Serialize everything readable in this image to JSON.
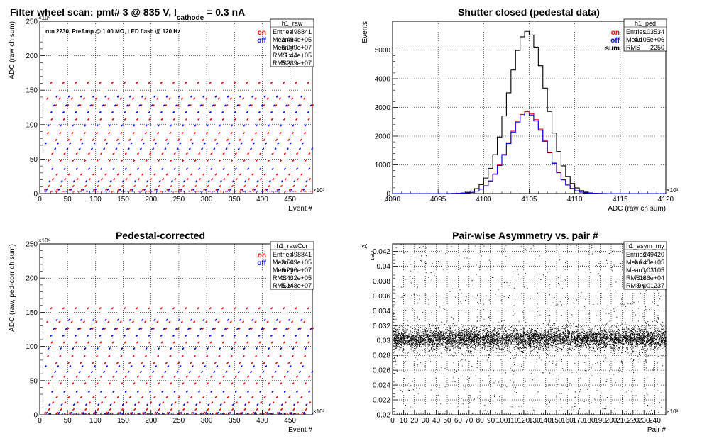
{
  "chart_data": [
    {
      "id": "raw",
      "type": "scatter",
      "title": "Filter wheel scan: pmt#   3 @   835 V, I",
      "title_sub": "cathode",
      "title_tail": "= 0.3 nA",
      "note": "run 2230, PreAmp @ 1.00 MΩ, LED flash @  120 Hz",
      "xlabel": "Event #",
      "ylabel": "ADC (raw ch sum)",
      "x_exponent": "×10³",
      "y_exponent": "×10⁶",
      "xlim": [
        0,
        490
      ],
      "ylim": [
        0,
        250
      ],
      "xticks": [
        0,
        50,
        100,
        150,
        200,
        250,
        300,
        350,
        400,
        450
      ],
      "yticks": [
        0,
        50,
        100,
        150,
        200,
        250
      ],
      "legend": [
        {
          "name": "on",
          "color": "#ff0000"
        },
        {
          "name": "off",
          "color": "#0000ff"
        }
      ],
      "levels_on": [
        5,
        10,
        20,
        27,
        47,
        57,
        77,
        87,
        107,
        127,
        137,
        160
      ],
      "levels_off": [
        5,
        17,
        35,
        64,
        72,
        98,
        117,
        127,
        140
      ],
      "period": 22,
      "stats": {
        "name": "h1_raw",
        "rows": [
          [
            "Entries",
            "498841"
          ],
          [
            "Mean x",
            "2.494e+05"
          ],
          [
            "Mean y",
            "6.049e+07"
          ],
          [
            "RMS x",
            "1.44e+05"
          ],
          [
            "RMS y",
            "5.239e+07"
          ]
        ]
      }
    },
    {
      "id": "ped",
      "type": "line",
      "title": "Shutter closed (pedestal data)",
      "xlabel": "ADC (raw ch sum)",
      "ylabel": "Events",
      "x_exponent": "×10³",
      "xlim": [
        4090,
        4120
      ],
      "ylim": [
        0,
        6000
      ],
      "xticks": [
        4090,
        4095,
        4100,
        4105,
        4110,
        4115,
        4120
      ],
      "yticks": [
        0,
        1000,
        2000,
        3000,
        4000,
        5000
      ],
      "legend": [
        {
          "name": "on",
          "color": "#ff0000"
        },
        {
          "name": "off",
          "color": "#0000ff"
        },
        {
          "name": "sum",
          "color": "#000000"
        }
      ],
      "series": [
        {
          "name": "sum",
          "color": "#000000",
          "mean": 4104.8,
          "sigma": 2.1,
          "peak": 5650
        },
        {
          "name": "on",
          "color": "#ff0000",
          "mean": 4104.8,
          "sigma": 2.1,
          "peak": 2850
        },
        {
          "name": "off",
          "color": "#0000ff",
          "mean": 4104.8,
          "sigma": 2.1,
          "peak": 2800
        }
      ],
      "stats": {
        "name": "h1_ped",
        "rows": [
          [
            "Entries",
            "103534"
          ],
          [
            "Mean",
            "4.105e+06"
          ],
          [
            "RMS",
            "2250"
          ]
        ]
      }
    },
    {
      "id": "rawcor",
      "type": "scatter",
      "title": "Pedestal-corrected",
      "xlabel": "Event #",
      "ylabel": "ADC (raw, ped-corr ch sum)",
      "x_exponent": "×10³",
      "y_exponent": "×10⁶",
      "xlim": [
        0,
        490
      ],
      "ylim": [
        0,
        250
      ],
      "xticks": [
        0,
        50,
        100,
        150,
        200,
        250,
        300,
        350,
        400,
        450
      ],
      "yticks": [
        0,
        50,
        100,
        150,
        200,
        250
      ],
      "legend": [
        {
          "name": "on",
          "color": "#ff0000"
        },
        {
          "name": "off",
          "color": "#0000ff"
        }
      ],
      "levels_on": [
        2,
        7,
        17,
        25,
        45,
        55,
        75,
        85,
        105,
        125,
        135,
        155
      ],
      "levels_off": [
        2,
        14,
        33,
        62,
        70,
        96,
        115,
        125,
        138
      ],
      "period": 22,
      "stats": {
        "name": "h1_rawCor",
        "rows": [
          [
            "Entries",
            "498841"
          ],
          [
            "Mean x",
            "2.569e+05"
          ],
          [
            "Mean y",
            "6.296e+07"
          ],
          [
            "RMS x",
            "1.432e+05"
          ],
          [
            "RMS y",
            "5.148e+07"
          ]
        ]
      }
    },
    {
      "id": "asym",
      "type": "scatter",
      "title": "Pair-wise Asymmetry vs. pair #",
      "xlabel": "Pair #",
      "ylabel": "A",
      "ylabel_sub": "LED",
      "x_exponent": "×10³",
      "xlim": [
        0,
        250
      ],
      "ylim": [
        0.02,
        0.043
      ],
      "xticks": [
        0,
        10,
        20,
        30,
        40,
        50,
        60,
        70,
        80,
        90,
        100,
        110,
        120,
        130,
        140,
        150,
        160,
        170,
        180,
        190,
        200,
        210,
        220,
        230,
        240
      ],
      "yticks": [
        0.02,
        0.022,
        0.024,
        0.026,
        0.028,
        0.03,
        0.032,
        0.034,
        0.036,
        0.038,
        0.04,
        0.042
      ],
      "center": 0.0303,
      "spike_period": 11,
      "stats": {
        "name": "h1_asym_my",
        "rows": [
          [
            "Entries",
            "249420"
          ],
          [
            "Mean x",
            "1.248e+05"
          ],
          [
            "Mean y",
            "0.03105"
          ],
          [
            "RMS x",
            "7.186e+04"
          ],
          [
            "RMS y",
            "0.001237"
          ]
        ]
      }
    }
  ]
}
